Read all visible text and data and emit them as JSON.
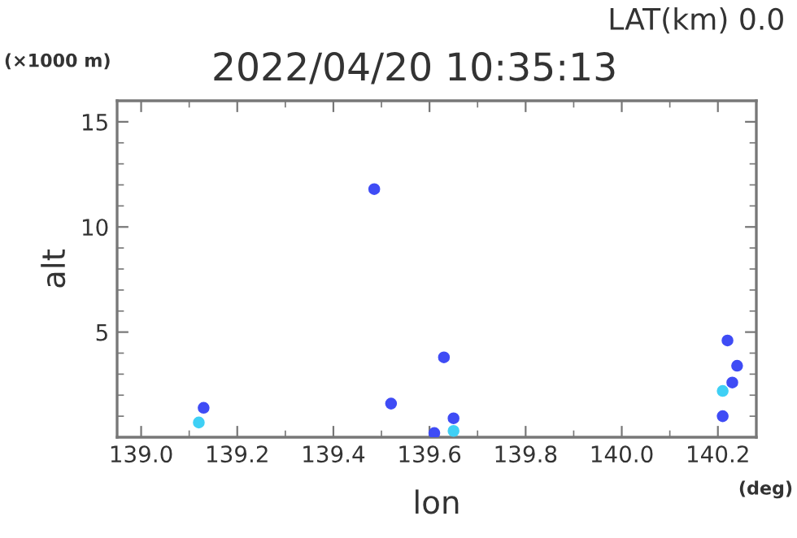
{
  "chart_data": {
    "type": "scatter",
    "title": "2022/04/20 10:35:13",
    "subtitle": "LAT(km) 0.0",
    "xlabel": "lon",
    "ylabel": "alt",
    "annotations": [
      "(×1000 m)",
      "(deg)"
    ],
    "series": [
      {
        "color": "#3f4cf5",
        "x": [
          139.13,
          139.485,
          139.52,
          139.63,
          139.61,
          139.65,
          140.22,
          140.24,
          140.21,
          140.23
        ],
        "values": [
          1.4,
          11.8,
          1.6,
          3.8,
          0.2,
          0.9,
          4.6,
          3.4,
          1.0,
          2.6
        ]
      },
      {
        "color": "#3fd0f5",
        "x": [
          139.12,
          139.65,
          140.21
        ],
        "values": [
          0.7,
          0.3,
          2.2
        ]
      }
    ],
    "marker": "circle",
    "xlim": [
      138.95,
      140.28
    ],
    "ylim": [
      0,
      16
    ],
    "xticks": [
      {
        "value": 139.0,
        "label": "139.0"
      },
      {
        "value": 139.2,
        "label": "139.2"
      },
      {
        "value": 139.4,
        "label": "139.4"
      },
      {
        "value": 139.6,
        "label": "139.6"
      },
      {
        "value": 139.8,
        "label": "139.8"
      },
      {
        "value": 140.0,
        "label": "140.0"
      },
      {
        "value": 140.2,
        "label": "140.2"
      }
    ],
    "yticks": [
      5,
      10,
      15
    ],
    "grid": false
  }
}
